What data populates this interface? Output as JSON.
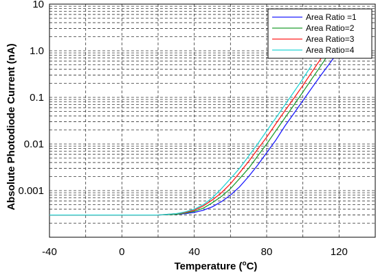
{
  "chart_data": {
    "type": "line",
    "title": "",
    "xlabel_main": "Temperature (",
    "xlabel_sup": "o",
    "xlabel_tail": "C)",
    "ylabel": "Absolute Photodiode Current (nA)",
    "xlim": [
      -40,
      140
    ],
    "ylim": [
      0.0001,
      10
    ],
    "yscale": "log",
    "grid": true,
    "legend_position": "top-right",
    "x_ticks": [
      {
        "value": -40,
        "label": "-40"
      },
      {
        "value": 0,
        "label": "0"
      },
      {
        "value": 40,
        "label": "40"
      },
      {
        "value": 80,
        "label": "80"
      },
      {
        "value": 120,
        "label": "120"
      }
    ],
    "y_ticks": [
      {
        "value": 10,
        "label": "10"
      },
      {
        "value": 1,
        "label": "1.0"
      },
      {
        "value": 0.1,
        "label": "0.1"
      },
      {
        "value": 0.01,
        "label": "0.01"
      },
      {
        "value": 0.001,
        "label": "0.001"
      }
    ],
    "series": [
      {
        "name": "Area Ratio =1",
        "color": "#1a1aff",
        "x": [
          -40,
          -20,
          0,
          20,
          30,
          35,
          40,
          45,
          50,
          55,
          60,
          65,
          70,
          75,
          80,
          85,
          90,
          95,
          100,
          105,
          110,
          115,
          120
        ],
        "y": [
          0.0003,
          0.0003,
          0.0003,
          0.0003,
          0.00031,
          0.00032,
          0.00034,
          0.00038,
          0.00045,
          0.00058,
          0.0008,
          0.0012,
          0.002,
          0.0035,
          0.0065,
          0.012,
          0.024,
          0.045,
          0.085,
          0.16,
          0.3,
          0.55,
          1.0
        ]
      },
      {
        "name": "Area Ratio=2",
        "color": "#1f9e2f",
        "x": [
          -40,
          -20,
          0,
          20,
          30,
          35,
          40,
          45,
          50,
          55,
          60,
          65,
          70,
          75,
          80,
          85,
          90,
          95,
          100,
          105,
          110,
          115
        ],
        "y": [
          0.0003,
          0.0003,
          0.0003,
          0.0003,
          0.00031,
          0.00033,
          0.00036,
          0.00042,
          0.00055,
          0.00075,
          0.0011,
          0.0018,
          0.003,
          0.0055,
          0.01,
          0.019,
          0.036,
          0.068,
          0.13,
          0.25,
          0.48,
          0.95
        ]
      },
      {
        "name": "Area Ratio=3",
        "color": "#ff1a1a",
        "x": [
          -40,
          -20,
          0,
          20,
          30,
          35,
          40,
          45,
          50,
          55,
          60,
          65,
          70,
          75,
          80,
          85,
          90,
          95,
          100,
          105,
          110
        ],
        "y": [
          0.0003,
          0.0003,
          0.0003,
          0.0003,
          0.00032,
          0.00034,
          0.00038,
          0.00047,
          0.00063,
          0.0009,
          0.0014,
          0.0024,
          0.0042,
          0.0077,
          0.014,
          0.027,
          0.051,
          0.095,
          0.18,
          0.35,
          0.68
        ]
      },
      {
        "name": "Area Ratio=4",
        "color": "#22d4d4",
        "x": [
          -40,
          -20,
          0,
          20,
          30,
          35,
          40,
          45,
          50,
          55,
          60,
          65,
          70,
          75,
          80,
          85,
          90,
          95,
          100,
          105
        ],
        "y": [
          0.0003,
          0.0003,
          0.0003,
          0.0003,
          0.00032,
          0.00035,
          0.0004,
          0.0005,
          0.0007,
          0.0011,
          0.0018,
          0.003,
          0.0055,
          0.01,
          0.019,
          0.036,
          0.068,
          0.13,
          0.25,
          0.5
        ]
      }
    ]
  }
}
